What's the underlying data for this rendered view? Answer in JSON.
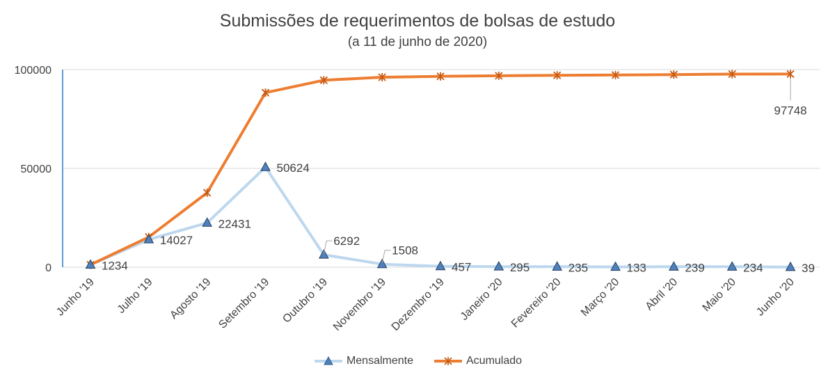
{
  "chart_data": {
    "type": "line",
    "title": "Submissões de requerimentos de bolsas de estudo",
    "subtitle": "(a 11 de junho  de 2020)",
    "categories": [
      "Junho '19",
      "Julho '19",
      "Agosto '19",
      "Setembro '19",
      "Outubro '19",
      "Novembro '19",
      "Dezembro '19",
      "Janeiro '20",
      "Fevereiro '20",
      "Março '20",
      "Abril '20",
      "Maio '20",
      "Junho '20"
    ],
    "series": [
      {
        "name": "Mensalmente",
        "color": "#bdd7ee",
        "marker": "triangle",
        "values": [
          1234,
          14027,
          22431,
          50624,
          6292,
          1508,
          457,
          295,
          235,
          133,
          239,
          234,
          39
        ],
        "labels": [
          "1234",
          "14027",
          "22431",
          "50624",
          "6292",
          "1508",
          "457",
          "295",
          "235",
          "133",
          "239",
          "234",
          "39"
        ]
      },
      {
        "name": "Acumulado",
        "color": "#ed7d31",
        "marker": "star",
        "values": [
          1234,
          15261,
          37692,
          88316,
          94608,
          96116,
          96573,
          96868,
          97103,
          97236,
          97475,
          97709,
          97748
        ],
        "labels": [
          "",
          "",
          "",
          "",
          "",
          "",
          "",
          "",
          "",
          "",
          "",
          "",
          "97748"
        ]
      }
    ],
    "y_ticks": [
      "0",
      "50000",
      "100000"
    ],
    "ylim": [
      0,
      100000
    ],
    "grid": true,
    "legend_position": "bottom"
  }
}
